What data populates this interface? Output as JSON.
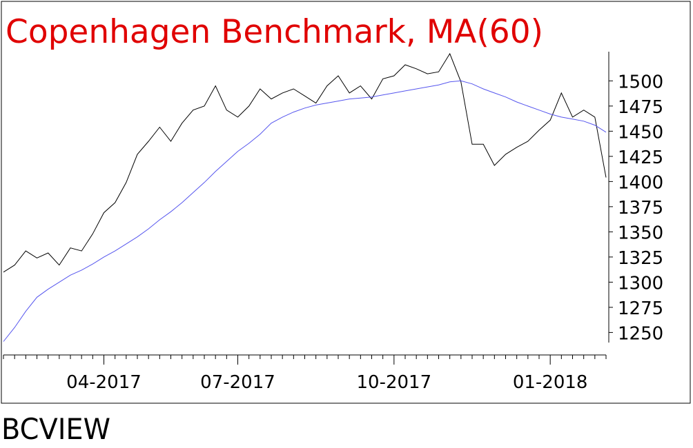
{
  "chart_data": {
    "type": "line",
    "title": "Copenhagen Benchmark, MA(60)",
    "footer": "BCVIEW",
    "categories": [
      null,
      null,
      null,
      null,
      null,
      null,
      null,
      null,
      null,
      "04-2017",
      null,
      null,
      null,
      null,
      null,
      null,
      null,
      null,
      null,
      null,
      null,
      "07-2017",
      null,
      null,
      null,
      null,
      null,
      null,
      null,
      null,
      null,
      null,
      null,
      null,
      null,
      "10-2017",
      null,
      null,
      null,
      null,
      null,
      null,
      null,
      null,
      null,
      null,
      null,
      null,
      null,
      "01-2018",
      null,
      null,
      null,
      null,
      null
    ],
    "series": [
      {
        "color": "#000000",
        "values": [
          1310,
          1317,
          1331,
          1324,
          1329,
          1317,
          1334,
          1331,
          1348,
          1369,
          1379,
          1399,
          1427,
          1440,
          1454,
          1440,
          1458,
          1471,
          1475,
          1495,
          1471,
          1464,
          1475,
          1492,
          1482,
          1488,
          1492,
          1485,
          1478,
          1495,
          1505,
          1488,
          1495,
          1482,
          1502,
          1505,
          1516,
          1512,
          1507,
          1509,
          1527,
          1499,
          1437,
          1437,
          1416,
          1427,
          1434,
          1440,
          1451,
          1461,
          1488,
          1464,
          1471,
          1464,
          1404
        ]
      },
      {
        "color": "#5555ee",
        "values": [
          1241,
          1255,
          1271,
          1285,
          1293,
          1300,
          1307,
          1312,
          1318,
          1325,
          1331,
          1338,
          1345,
          1353,
          1362,
          1370,
          1379,
          1389,
          1399,
          1410,
          1420,
          1430,
          1438,
          1447,
          1458,
          1464,
          1469,
          1473,
          1476,
          1478,
          1480,
          1482,
          1483,
          1484,
          1486,
          1488,
          1490,
          1492,
          1494,
          1496,
          1499,
          1500,
          1497,
          1492,
          1488,
          1484,
          1479,
          1475,
          1471,
          1467,
          1464,
          1462,
          1460,
          1456,
          1449
        ]
      }
    ],
    "ylim": [
      1240,
      1529
    ],
    "yticks": [
      1250,
      1275,
      1300,
      1325,
      1350,
      1375,
      1400,
      1425,
      1450,
      1475,
      1500
    ]
  }
}
